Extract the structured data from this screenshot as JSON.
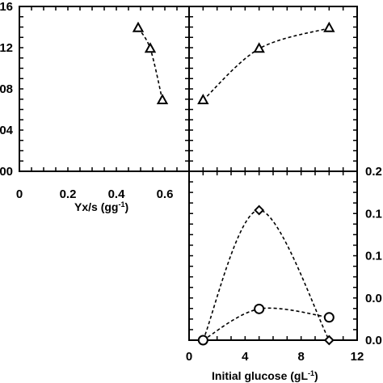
{
  "chart_data": [
    {
      "id": "top-left",
      "type": "line",
      "xlim": [
        0,
        0.7
      ],
      "ylim": [
        0,
        0.16
      ],
      "x_ticks": [
        "0",
        "0.2",
        "0.4",
        "0.6"
      ],
      "x_tick_values": [
        0,
        0.2,
        0.4,
        0.6
      ],
      "y_ticks": [
        "00",
        "04",
        "08",
        "12",
        "16"
      ],
      "y_tick_values": [
        0,
        0.04,
        0.08,
        0.12,
        0.16
      ],
      "xlabel": "Yx/s (gg",
      "xlabel_sup": "-1",
      "xlabel_end": ")",
      "ylabel": "",
      "series": [
        {
          "marker": "triangle",
          "x": [
            0.49,
            0.54,
            0.59
          ],
          "y": [
            0.139,
            0.119,
            0.069
          ]
        }
      ]
    },
    {
      "id": "top-right",
      "type": "line",
      "xlim": [
        0,
        12
      ],
      "ylim": [
        0,
        0.16
      ],
      "series": [
        {
          "marker": "triangle",
          "x": [
            1,
            5,
            10
          ],
          "y": [
            0.069,
            0.119,
            0.139
          ]
        }
      ]
    },
    {
      "id": "bottom-right",
      "type": "line",
      "xlim": [
        0,
        12
      ],
      "ylim": [
        0,
        0.2
      ],
      "x_ticks": [
        "0",
        "4",
        "8",
        "12"
      ],
      "x_tick_values": [
        0,
        4,
        8,
        12
      ],
      "y_ticks": [
        "0.0",
        "0.0",
        "0.1",
        "0.1",
        "0.2"
      ],
      "y_tick_values": [
        0,
        0.05,
        0.1,
        0.15,
        0.2
      ],
      "xlabel": "Initial glucose (gL",
      "xlabel_sup": "-1",
      "xlabel_end": ")",
      "ylabel": "",
      "series": [
        {
          "marker": "diamond",
          "x": [
            1,
            5,
            10
          ],
          "y": [
            0.0,
            0.154,
            0.0
          ]
        },
        {
          "marker": "circle",
          "x": [
            1,
            5,
            10
          ],
          "y": [
            0.0,
            0.037,
            0.027
          ]
        }
      ]
    }
  ]
}
